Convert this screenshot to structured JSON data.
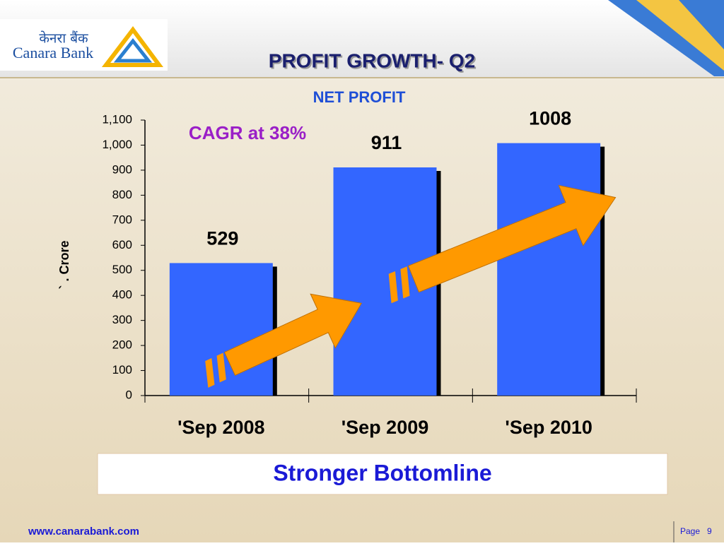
{
  "header": {
    "title": "PROFIT GROWTH- Q2",
    "logo_hindi": "केनरा बैंक",
    "logo_name": "Canara Bank"
  },
  "chart_data": {
    "type": "bar",
    "title": "NET PROFIT",
    "annotation": "CAGR at 38%",
    "y_label": "` . Crore",
    "categories": [
      "'Sep 2008",
      "'Sep 2009",
      "'Sep 2010"
    ],
    "values": [
      529,
      911,
      1008
    ],
    "color": "#3366ff",
    "ylim": [
      0,
      1100
    ],
    "yticks": [
      0,
      100,
      200,
      300,
      400,
      500,
      600,
      700,
      800,
      900,
      {
        "value": 1000,
        "label": "1,000"
      },
      {
        "value": 1100,
        "label": "1,100"
      }
    ]
  },
  "callout": "Stronger Bottomline",
  "footer": {
    "url": "www.canarabank.com",
    "page_label": "Page",
    "page_number": "9"
  }
}
